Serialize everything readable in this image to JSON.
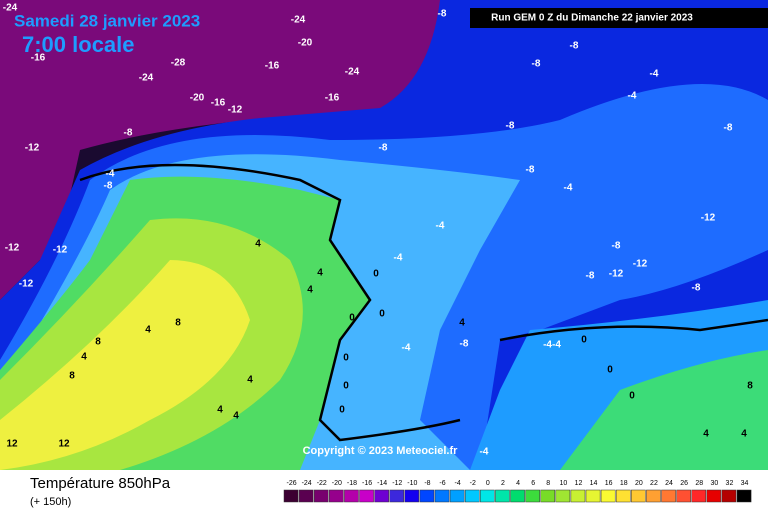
{
  "header": {
    "date": "Samedi 28 janvier 2023",
    "time": "7:00 locale",
    "run": "Run GEM 0 Z du Dimanche 22 janvier 2023"
  },
  "map": {
    "copyright": "Copyright © 2023 Meteociel.fr",
    "labels": [
      "-24",
      "-24",
      "-20",
      "-28",
      "-16",
      "-24",
      "-16",
      "-24",
      "-20",
      "-16",
      "-12",
      "-16",
      "-8",
      "-8",
      "-8",
      "-4",
      "-4",
      "-8",
      "-8",
      "-8",
      "-12",
      "-8",
      "-4",
      "-4",
      "-8",
      "-12",
      "-12",
      "-12",
      "-12",
      "-8",
      "-12",
      "-8",
      "-12",
      "-8",
      "-4",
      "-4",
      "4",
      "4",
      "4",
      "0",
      "0",
      "0",
      "4",
      "-8",
      "-4",
      "-4-4",
      "0",
      "0",
      "4",
      "8",
      "4",
      "4",
      "4",
      "4",
      "0",
      "0",
      "0",
      "12",
      "12",
      "4",
      "4",
      "8",
      "0",
      "-4",
      "-8",
      "8",
      "8"
    ]
  },
  "footer": {
    "title": "Température 850hPa",
    "lead": "(+ 150h)"
  },
  "scale": {
    "values": [
      -26,
      -24,
      -22,
      -20,
      -18,
      -16,
      -14,
      -12,
      -10,
      -8,
      -6,
      -4,
      -2,
      0,
      2,
      4,
      6,
      8,
      10,
      12,
      14,
      16,
      18,
      20,
      22,
      24,
      26,
      28,
      30,
      32,
      34
    ],
    "colors": [
      "#3c0032",
      "#5a0050",
      "#78006e",
      "#96008c",
      "#b400aa",
      "#c800c8",
      "#6e00d2",
      "#3c28dc",
      "#1400f0",
      "#0046ff",
      "#0078ff",
      "#00a0ff",
      "#00c8ff",
      "#00e6e6",
      "#00e6aa",
      "#00dc6e",
      "#3cdc3c",
      "#78dc28",
      "#a0e632",
      "#c8f032",
      "#e6f532",
      "#fafa32",
      "#ffe132",
      "#ffc832",
      "#ffa032",
      "#ff7832",
      "#ff5032",
      "#ff2828",
      "#e60000",
      "#b40000",
      "#000000"
    ]
  }
}
